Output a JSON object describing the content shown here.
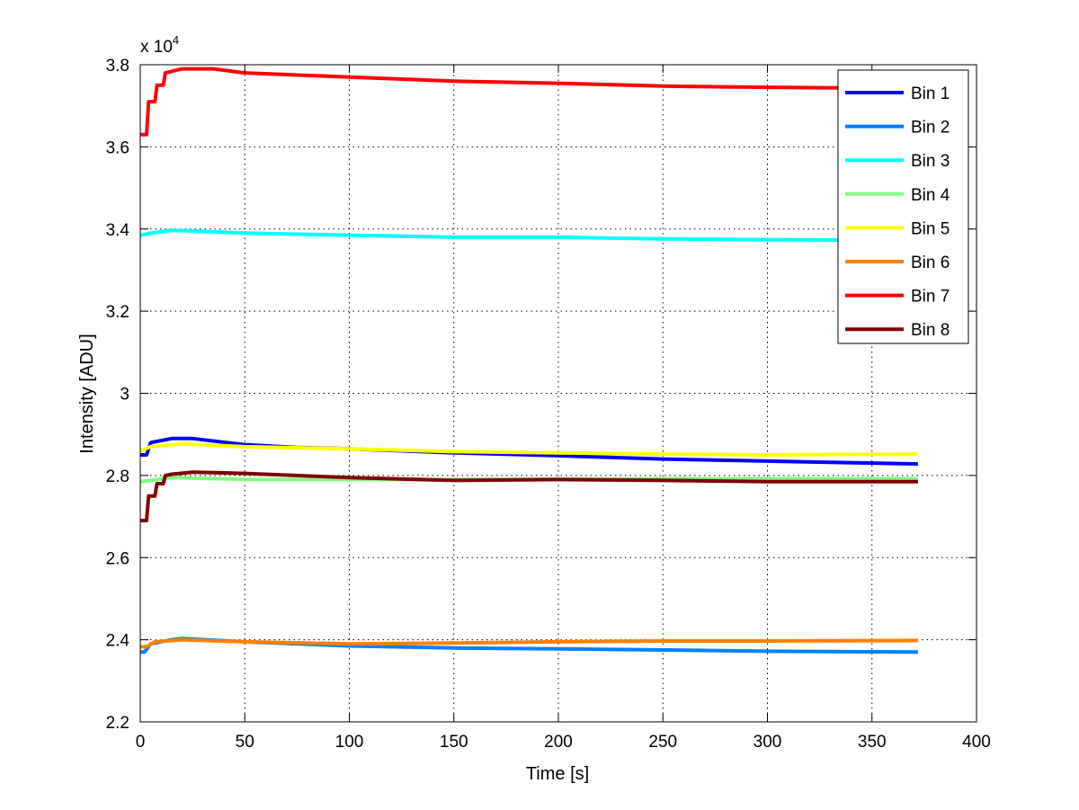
{
  "chart_data": {
    "type": "line",
    "title": "",
    "xlabel": "Time [s]",
    "ylabel": "Intensity [ADU]",
    "y_multiplier_label": "x 10",
    "y_multiplier_exp": "4",
    "xlim": [
      0,
      400
    ],
    "ylim": [
      2.2,
      3.8
    ],
    "xticks": [
      "0",
      "50",
      "100",
      "150",
      "200",
      "250",
      "300",
      "350",
      "400"
    ],
    "yticks": [
      "2.2",
      "2.4",
      "2.6",
      "2.8",
      "3",
      "3.2",
      "3.4",
      "3.6",
      "3.8"
    ],
    "grid": true,
    "legend_position": "top-right",
    "series": [
      {
        "name": "Bin 1",
        "color": "#0000ff",
        "x": [
          0,
          3,
          5,
          15,
          25,
          50,
          75,
          100,
          150,
          200,
          250,
          300,
          372
        ],
        "y": [
          2.85,
          2.85,
          2.88,
          2.89,
          2.89,
          2.875,
          2.868,
          2.865,
          2.855,
          2.848,
          2.84,
          2.835,
          2.828
        ]
      },
      {
        "name": "Bin 2",
        "color": "#0080ff",
        "x": [
          0,
          2,
          5,
          15,
          20,
          50,
          100,
          150,
          200,
          250,
          300,
          372
        ],
        "y": [
          2.37,
          2.37,
          2.39,
          2.4,
          2.403,
          2.395,
          2.385,
          2.38,
          2.378,
          2.375,
          2.372,
          2.37
        ]
      },
      {
        "name": "Bin 3",
        "color": "#00ffff",
        "x": [
          0,
          5,
          15,
          50,
          100,
          150,
          200,
          250,
          300,
          372
        ],
        "y": [
          3.385,
          3.39,
          3.397,
          3.39,
          3.385,
          3.38,
          3.38,
          3.376,
          3.374,
          3.372
        ]
      },
      {
        "name": "Bin 4",
        "color": "#80ff80",
        "x": [
          0,
          5,
          15,
          50,
          100,
          150,
          200,
          250,
          300,
          372
        ],
        "y": [
          2.785,
          2.788,
          2.795,
          2.79,
          2.79,
          2.79,
          2.791,
          2.792,
          2.792,
          2.792
        ]
      },
      {
        "name": "Bin 5",
        "color": "#ffff00",
        "x": [
          0,
          5,
          20,
          50,
          100,
          150,
          200,
          250,
          300,
          372
        ],
        "y": [
          2.86,
          2.87,
          2.877,
          2.87,
          2.865,
          2.858,
          2.855,
          2.852,
          2.85,
          2.852
        ]
      },
      {
        "name": "Bin 6",
        "color": "#ff8000",
        "x": [
          0,
          3,
          7,
          20,
          50,
          100,
          150,
          200,
          250,
          300,
          372
        ],
        "y": [
          2.383,
          2.383,
          2.395,
          2.4,
          2.395,
          2.39,
          2.392,
          2.395,
          2.397,
          2.397,
          2.398
        ]
      },
      {
        "name": "Bin 7",
        "color": "#ff0000",
        "x": [
          0,
          3,
          4,
          7,
          8,
          11,
          12,
          20,
          35,
          50,
          100,
          150,
          200,
          250,
          300,
          372
        ],
        "y": [
          3.63,
          3.63,
          3.71,
          3.71,
          3.75,
          3.75,
          3.78,
          3.79,
          3.79,
          3.78,
          3.77,
          3.76,
          3.755,
          3.748,
          3.745,
          3.742
        ]
      },
      {
        "name": "Bin 8",
        "color": "#800000",
        "x": [
          0,
          3,
          4,
          7,
          8,
          11,
          12,
          15,
          25,
          50,
          100,
          150,
          200,
          250,
          300,
          372
        ],
        "y": [
          2.69,
          2.69,
          2.75,
          2.75,
          2.78,
          2.78,
          2.8,
          2.803,
          2.808,
          2.805,
          2.795,
          2.788,
          2.79,
          2.788,
          2.785,
          2.785
        ]
      }
    ]
  }
}
